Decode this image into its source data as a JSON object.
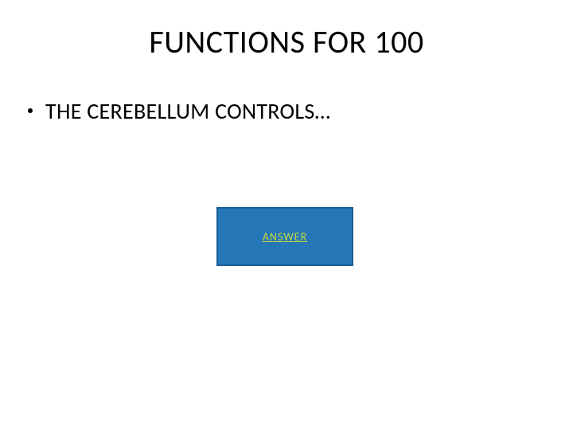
{
  "slide": {
    "title": "FUNCTIONS FOR 100",
    "bullet_text": "THE CEREBELLUM CONTROLS…",
    "answer_button": {
      "label": "ANSWER",
      "background_color": "#2577b8",
      "border_color": "#1e5f94",
      "text_color": "#c5d93a"
    },
    "background_color": "#ffffff",
    "title_color": "#000000",
    "text_color": "#000000"
  }
}
